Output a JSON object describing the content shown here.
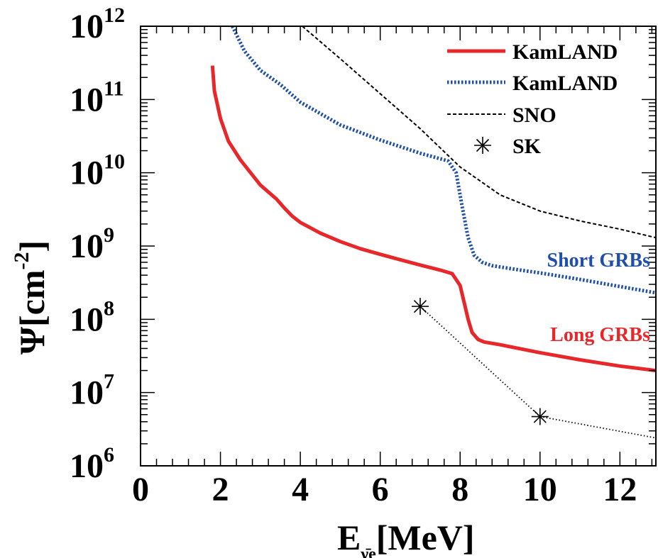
{
  "chart_data": {
    "type": "line",
    "xlabel": "E",
    "xlabel_sub": "ν̄e",
    "xlabel_unit": "[MeV]",
    "ylabel": "Ψ[cm",
    "ylabel_exp": "-2",
    "ylabel_close": "]",
    "xlim": [
      0,
      12.9
    ],
    "ylim": [
      1000000.0,
      1000000000000.0
    ],
    "yscale": "log",
    "grid": false,
    "legend_position": "top-right",
    "x_ticks": [
      "0",
      "2",
      "4",
      "6",
      "8",
      "10",
      "12"
    ],
    "y_ticks": [
      {
        "base": "10",
        "exp": "6"
      },
      {
        "base": "10",
        "exp": "7"
      },
      {
        "base": "10",
        "exp": "8"
      },
      {
        "base": "10",
        "exp": "9"
      },
      {
        "base": "10",
        "exp": "10"
      },
      {
        "base": "10",
        "exp": "11"
      },
      {
        "base": "10",
        "exp": "12"
      }
    ],
    "series": [
      {
        "name": "KamLAND",
        "style": "solid",
        "color": "#e8272a",
        "x": [
          1.8,
          1.85,
          2.0,
          2.2,
          2.5,
          3.0,
          3.4,
          3.6,
          3.8,
          4.0,
          4.5,
          5.0,
          5.5,
          6.0,
          6.5,
          7.0,
          7.5,
          7.8,
          8.0,
          8.1,
          8.2,
          8.3,
          8.45,
          8.6,
          9.0,
          10.0,
          11.0,
          12.0,
          12.9
        ],
        "y": [
          290000000000.0,
          130000000000.0,
          55000000000.0,
          27000000000.0,
          15000000000.0,
          6800000000.0,
          4400000000.0,
          3300000000.0,
          2550000000.0,
          2100000000.0,
          1500000000.0,
          1150000000.0,
          920000000.0,
          770000000.0,
          650000000.0,
          550000000.0,
          470000000.0,
          420000000.0,
          290000000.0,
          170000000.0,
          100000000.0,
          66000000.0,
          53000000.0,
          49000000.0,
          45000000.0,
          35000000.0,
          28000000.0,
          23000000.0,
          20000000.0
        ]
      },
      {
        "name": "KamLAND",
        "style": "dotted",
        "color": "#1f4fa8",
        "x": [
          2.3,
          2.6,
          3.0,
          3.5,
          4.0,
          5.0,
          6.0,
          7.0,
          7.7,
          7.9,
          8.05,
          8.2,
          8.35,
          8.55,
          8.8,
          9.5,
          10.0,
          11.0,
          12.0,
          12.9
        ],
        "y": [
          1000000000000.0,
          460000000000.0,
          250000000000.0,
          160000000000.0,
          92000000000.0,
          45000000000.0,
          28000000000.0,
          18500000000.0,
          14500000000.0,
          10000000000.0,
          3500000000.0,
          1300000000.0,
          750000000.0,
          600000000.0,
          540000000.0,
          470000000.0,
          430000000.0,
          350000000.0,
          280000000.0,
          230000000.0
        ]
      },
      {
        "name": "SNO",
        "style": "dashed",
        "color": "#000000",
        "x": [
          4.05,
          5.0,
          6.0,
          7.0,
          8.0,
          9.0,
          10.0,
          11.0,
          12.0,
          12.9
        ],
        "y": [
          1000000000000.0,
          360000000000.0,
          120000000000.0,
          40000000000.0,
          12000000000.0,
          5000000000.0,
          3000000000.0,
          2200000000.0,
          1700000000.0,
          1300000000.0
        ]
      },
      {
        "name": "SK",
        "style": "marker-dotted",
        "color": "#000000",
        "x": [
          7.0,
          10.0,
          12.9
        ],
        "y": [
          150000000.0,
          4700000.0,
          2400000.0
        ],
        "markers": [
          0,
          1
        ]
      }
    ],
    "annotations": [
      {
        "text": "Short GRBs",
        "color": "#1f4fa8"
      },
      {
        "text": "Long GRBs",
        "color": "#e8272a"
      }
    ]
  }
}
